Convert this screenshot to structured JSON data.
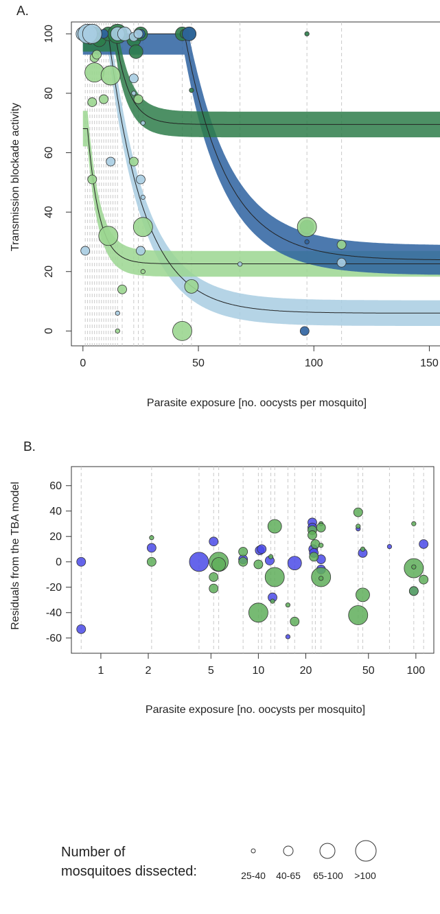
{
  "colors": {
    "dark_green": "#2e7d4a",
    "light_green": "#9bd690",
    "dark_blue": "#2d62a0",
    "light_blue": "#a8cde2",
    "purple_blue": "#4a4ae8",
    "resid_green": "#5fae5b",
    "dashed": "#c9c9c9"
  },
  "chart_data": [
    {
      "panel_label": "A.",
      "type": "scatter",
      "xlabel": "Parasite exposure [no. oocysts per mosquito]",
      "ylabel": "Transmission blockade activity",
      "xlim": [
        -5,
        157
      ],
      "ylim": [
        -5,
        104
      ],
      "xticks": [
        0,
        50,
        100,
        150
      ],
      "yticks": [
        0,
        20,
        40,
        60,
        80,
        100
      ],
      "exposure_lines": [
        1,
        2,
        3,
        4,
        5,
        6,
        7,
        8,
        9,
        10,
        11,
        12,
        13,
        14,
        15,
        17,
        22,
        24,
        26,
        43,
        47,
        68,
        97,
        112
      ],
      "series": [
        {
          "color": "dark_green",
          "curve": {
            "floor": 69.5,
            "scale": 30.5,
            "x0": 14,
            "rate": 0.17
          },
          "band_halfwidth": 6,
          "points": [
            {
              "x": 5,
              "y": 100,
              "s": 2
            },
            {
              "x": 7,
              "y": 98,
              "s": 2
            },
            {
              "x": 11,
              "y": 100,
              "s": 2
            },
            {
              "x": 15,
              "y": 100,
              "s": 3
            },
            {
              "x": 22,
              "y": 98,
              "s": 2
            },
            {
              "x": 23,
              "y": 94,
              "s": 2
            },
            {
              "x": 25,
              "y": 100,
              "s": 2
            },
            {
              "x": 43,
              "y": 100,
              "s": 2
            },
            {
              "x": 44,
              "y": 100,
              "s": 1
            },
            {
              "x": 46,
              "y": 100,
              "s": 2
            },
            {
              "x": 47,
              "y": 81,
              "s": 0
            },
            {
              "x": 97,
              "y": 100,
              "s": 0
            },
            {
              "x": 97,
              "y": 35,
              "s": 2
            }
          ]
        },
        {
          "color": "light_green",
          "curve": {
            "floor": 22.6,
            "scale": 45.5,
            "x0": 2,
            "rate": 0.2
          },
          "band_halfwidth": 6,
          "points": [
            {
              "x": 2,
              "y": 100,
              "s": 2
            },
            {
              "x": 3,
              "y": 98,
              "s": 1
            },
            {
              "x": 5,
              "y": 92,
              "s": 1
            },
            {
              "x": 6,
              "y": 93,
              "s": 1
            },
            {
              "x": 5,
              "y": 87,
              "s": 3
            },
            {
              "x": 12,
              "y": 86,
              "s": 3
            },
            {
              "x": 4,
              "y": 77,
              "s": 1
            },
            {
              "x": 9,
              "y": 78,
              "s": 1
            },
            {
              "x": 24,
              "y": 78,
              "s": 1
            },
            {
              "x": 22,
              "y": 57,
              "s": 1
            },
            {
              "x": 4,
              "y": 51,
              "s": 1
            },
            {
              "x": 11,
              "y": 32,
              "s": 3
            },
            {
              "x": 26,
              "y": 35,
              "s": 3
            },
            {
              "x": 26,
              "y": 20,
              "s": 0
            },
            {
              "x": 17,
              "y": 14,
              "s": 1
            },
            {
              "x": 15,
              "y": 0,
              "s": 0
            },
            {
              "x": 47,
              "y": 15,
              "s": 2
            },
            {
              "x": 43,
              "y": 0,
              "s": 3
            },
            {
              "x": 97,
              "y": 35,
              "s": 3
            },
            {
              "x": 112,
              "y": 29,
              "s": 1
            }
          ]
        },
        {
          "color": "dark_blue",
          "curve": {
            "floor": 23.8,
            "scale": 76.2,
            "x0": 44,
            "rate": 0.055
          },
          "band_halfwidth": 7,
          "points": [
            {
              "x": 9,
              "y": 100,
              "s": 1
            },
            {
              "x": 25,
              "y": 100,
              "s": 1
            },
            {
              "x": 46,
              "y": 100,
              "s": 2
            },
            {
              "x": 96,
              "y": 0,
              "s": 1
            },
            {
              "x": 97,
              "y": 30,
              "s": 0
            }
          ]
        },
        {
          "color": "light_blue",
          "curve": {
            "floor": 6,
            "scale": 94,
            "x0": 11,
            "rate": 0.065
          },
          "band_halfwidth": 6,
          "points": [
            {
              "x": 0,
              "y": 100,
              "s": 2
            },
            {
              "x": 2,
              "y": 100,
              "s": 3
            },
            {
              "x": 4,
              "y": 100,
              "s": 3
            },
            {
              "x": 15,
              "y": 100,
              "s": 2
            },
            {
              "x": 18,
              "y": 100,
              "s": 2
            },
            {
              "x": 22,
              "y": 99,
              "s": 1
            },
            {
              "x": 24,
              "y": 100,
              "s": 1
            },
            {
              "x": 22,
              "y": 85,
              "s": 1
            },
            {
              "x": 22,
              "y": 80,
              "s": 0
            },
            {
              "x": 26,
              "y": 70,
              "s": 0
            },
            {
              "x": 12,
              "y": 57,
              "s": 1
            },
            {
              "x": 25,
              "y": 51,
              "s": 1
            },
            {
              "x": 26,
              "y": 45,
              "s": 0
            },
            {
              "x": 25,
              "y": 27,
              "s": 1
            },
            {
              "x": 1,
              "y": 27,
              "s": 1
            },
            {
              "x": 15,
              "y": 6,
              "s": 0
            },
            {
              "x": 68,
              "y": 22.5,
              "s": 0
            },
            {
              "x": 112,
              "y": 23,
              "s": 1
            }
          ]
        }
      ]
    },
    {
      "panel_label": "B.",
      "type": "scatter",
      "xscale": "log",
      "xlabel": "Parasite exposure [no. oocysts per mosquito]",
      "ylabel": "Residuals from the TBA model",
      "xlim": [
        0.65,
        130
      ],
      "ylim": [
        -72,
        75
      ],
      "xticks": [
        1,
        2,
        5,
        10,
        20,
        50,
        100
      ],
      "yticks": [
        -60,
        -40,
        -20,
        0,
        20,
        40,
        60
      ],
      "exposure_lines": [
        0.75,
        2.1,
        4.2,
        5.2,
        5.6,
        8,
        10,
        10.5,
        12,
        12.7,
        15.4,
        17,
        22,
        23,
        25,
        43,
        46,
        68,
        97,
        112
      ],
      "series": [
        {
          "color": "purple_blue",
          "points": [
            {
              "x": 0.75,
              "y": 0,
              "s": 1
            },
            {
              "x": 0.75,
              "y": -53,
              "s": 1
            },
            {
              "x": 2.1,
              "y": 11,
              "s": 1
            },
            {
              "x": 4.2,
              "y": 0,
              "s": 3
            },
            {
              "x": 5.2,
              "y": 16,
              "s": 1
            },
            {
              "x": 8,
              "y": 2,
              "s": 1
            },
            {
              "x": 10.2,
              "y": 9,
              "s": 1
            },
            {
              "x": 10.5,
              "y": 10,
              "s": 1
            },
            {
              "x": 11.8,
              "y": 1,
              "s": 1
            },
            {
              "x": 12.3,
              "y": -28,
              "s": 1
            },
            {
              "x": 17,
              "y": -1,
              "s": 2
            },
            {
              "x": 15.4,
              "y": -59,
              "s": 0
            },
            {
              "x": 22,
              "y": 31,
              "s": 1
            },
            {
              "x": 22,
              "y": 27,
              "s": 1
            },
            {
              "x": 22.3,
              "y": 10,
              "s": 1
            },
            {
              "x": 22.5,
              "y": 7,
              "s": 1
            },
            {
              "x": 25,
              "y": 2,
              "s": 1
            },
            {
              "x": 25,
              "y": -6,
              "s": 1
            },
            {
              "x": 43,
              "y": 26,
              "s": 0
            },
            {
              "x": 46,
              "y": 7,
              "s": 1
            },
            {
              "x": 68,
              "y": 12,
              "s": 0
            },
            {
              "x": 112,
              "y": 14,
              "s": 1
            },
            {
              "x": 97,
              "y": -23,
              "s": 1
            }
          ]
        },
        {
          "color": "resid_green",
          "points": [
            {
              "x": 2.1,
              "y": 19,
              "s": 0
            },
            {
              "x": 2.1,
              "y": 0,
              "s": 1
            },
            {
              "x": 5.6,
              "y": 0,
              "s": 3
            },
            {
              "x": 5.6,
              "y": -2,
              "s": 2
            },
            {
              "x": 5.2,
              "y": -12,
              "s": 1
            },
            {
              "x": 5.2,
              "y": -21,
              "s": 1
            },
            {
              "x": 8,
              "y": 8,
              "s": 1
            },
            {
              "x": 8,
              "y": 0,
              "s": 1
            },
            {
              "x": 10,
              "y": -2,
              "s": 1
            },
            {
              "x": 10,
              "y": -40,
              "s": 3
            },
            {
              "x": 12,
              "y": 4,
              "s": 0
            },
            {
              "x": 12.7,
              "y": 28,
              "s": 2
            },
            {
              "x": 12.7,
              "y": -12,
              "s": 3
            },
            {
              "x": 12.3,
              "y": -31,
              "s": 0
            },
            {
              "x": 15.4,
              "y": -34,
              "s": 0
            },
            {
              "x": 17,
              "y": -47,
              "s": 1
            },
            {
              "x": 22,
              "y": 25,
              "s": 1
            },
            {
              "x": 22,
              "y": 21,
              "s": 1
            },
            {
              "x": 22.5,
              "y": 4,
              "s": 1
            },
            {
              "x": 23,
              "y": 14,
              "s": 1
            },
            {
              "x": 25,
              "y": 30,
              "s": 0
            },
            {
              "x": 25,
              "y": 27,
              "s": 1
            },
            {
              "x": 25,
              "y": 13,
              "s": 0
            },
            {
              "x": 25,
              "y": -12,
              "s": 3
            },
            {
              "x": 25,
              "y": -13,
              "s": 0
            },
            {
              "x": 43,
              "y": 39,
              "s": 1
            },
            {
              "x": 43,
              "y": 28,
              "s": 0
            },
            {
              "x": 43,
              "y": -42,
              "s": 3
            },
            {
              "x": 46,
              "y": 10,
              "s": 0
            },
            {
              "x": 46,
              "y": -26,
              "s": 2
            },
            {
              "x": 97,
              "y": 30,
              "s": 0
            },
            {
              "x": 97,
              "y": -5,
              "s": 3
            },
            {
              "x": 97,
              "y": -4,
              "s": 0
            },
            {
              "x": 112,
              "y": -14,
              "s": 1
            },
            {
              "x": 97,
              "y": -23,
              "s": 1
            }
          ]
        }
      ]
    }
  ],
  "legend": {
    "title_line1": "Number of",
    "title_line2": "mosquitoes dissected:",
    "bins": [
      "25-40",
      "40-65",
      "65-100",
      ">100"
    ]
  }
}
